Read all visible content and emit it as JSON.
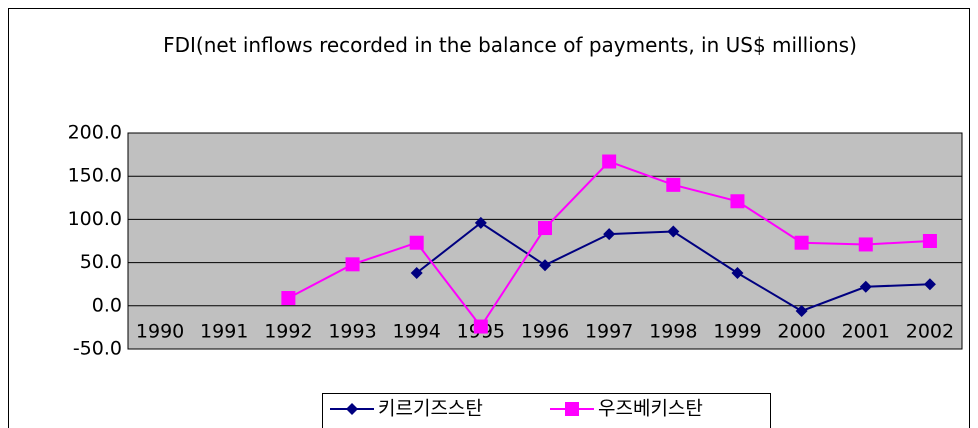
{
  "chart_data": {
    "type": "line",
    "title": "FDI(net inflows recorded in the balance of payments, in US$ millions)",
    "categories": [
      "1990",
      "1991",
      "1992",
      "1993",
      "1994",
      "1995",
      "1996",
      "1997",
      "1998",
      "1999",
      "2000",
      "2001",
      "2002"
    ],
    "series": [
      {
        "name": "키르기즈스탄",
        "color": "#000080",
        "marker": "diamond",
        "values": [
          null,
          null,
          null,
          null,
          38,
          96,
          47,
          83,
          86,
          38,
          -6,
          22,
          25
        ]
      },
      {
        "name": "우즈베키스탄",
        "color": "#ff00ff",
        "marker": "square",
        "values": [
          null,
          null,
          9,
          48,
          73,
          -24,
          90,
          167,
          140,
          121,
          73,
          71,
          75
        ]
      }
    ],
    "ylim": [
      -50,
      200
    ],
    "yticks": [
      {
        "value": -50,
        "label": "-50.0"
      },
      {
        "value": 0,
        "label": "0.0"
      },
      {
        "value": 50,
        "label": "50.0"
      },
      {
        "value": 100,
        "label": "100.0"
      },
      {
        "value": 150,
        "label": "150.0"
      },
      {
        "value": 200,
        "label": "200.0"
      }
    ],
    "grid": true,
    "plot_background": "#c0c0c0",
    "legend": "bottom"
  }
}
